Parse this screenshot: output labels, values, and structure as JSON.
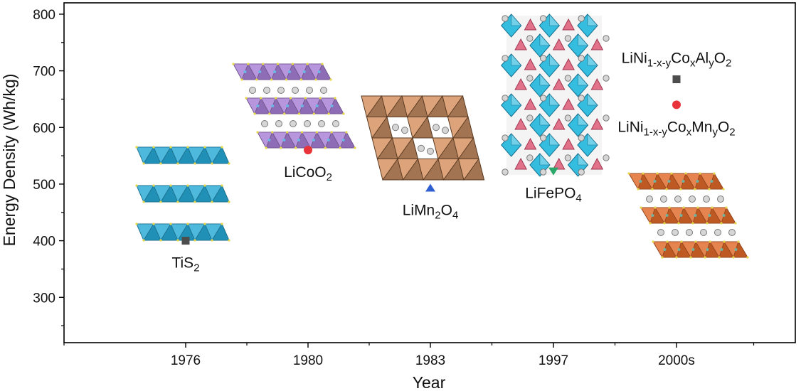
{
  "chart_data": {
    "type": "scatter",
    "title": "",
    "xlabel": "Year",
    "ylabel": "Energy Density (Wh/kg)",
    "categories": [
      "1976",
      "1980",
      "1983",
      "1997",
      "2000s"
    ],
    "ylim": [
      220,
      820
    ],
    "yticks": [
      300,
      400,
      500,
      600,
      700,
      800
    ],
    "grid": false,
    "points": [
      {
        "category": "1976",
        "value": 400,
        "label": "TiS2",
        "label_parts": [
          [
            "TiS",
            ""
          ],
          [
            "2",
            "sub"
          ]
        ],
        "marker": "square",
        "color": "#4d4d4d",
        "label_pos": "below"
      },
      {
        "category": "1980",
        "value": 560,
        "label": "LiCoO2",
        "label_parts": [
          [
            "LiCoO",
            ""
          ],
          [
            "2",
            "sub"
          ]
        ],
        "marker": "circle",
        "color": "#e8333a",
        "label_pos": "below"
      },
      {
        "category": "1983",
        "value": 493,
        "label": "LiMn2O4",
        "label_parts": [
          [
            "LiMn",
            ""
          ],
          [
            "2",
            "sub"
          ],
          [
            "O",
            ""
          ],
          [
            "4",
            "sub"
          ]
        ],
        "marker": "triangle-up",
        "color": "#2f5fd0",
        "label_pos": "below"
      },
      {
        "category": "1997",
        "value": 523,
        "label": "LiFePO4",
        "label_parts": [
          [
            "LiFePO",
            ""
          ],
          [
            "4",
            "sub"
          ]
        ],
        "marker": "triangle-down",
        "color": "#2aa86a",
        "label_pos": "below"
      },
      {
        "category": "2000s",
        "value": 685,
        "label": "LiNi1-x-yCoxAlyO2",
        "label_parts": [
          [
            "LiNi",
            ""
          ],
          [
            "1-x-y",
            "sub"
          ],
          [
            "Co",
            ""
          ],
          [
            "x",
            "sub"
          ],
          [
            "Al",
            ""
          ],
          [
            "y",
            "sub"
          ],
          [
            "O",
            ""
          ],
          [
            "2",
            "sub"
          ]
        ],
        "marker": "square",
        "color": "#4d4d4d",
        "label_pos": "above"
      },
      {
        "category": "2000s",
        "value": 640,
        "label": "LiNi1-x-yCoxMnyO2",
        "label_parts": [
          [
            "LiNi",
            ""
          ],
          [
            "1-x-y",
            "sub"
          ],
          [
            "Co",
            ""
          ],
          [
            "x",
            "sub"
          ],
          [
            "Mn",
            ""
          ],
          [
            "y",
            "sub"
          ],
          [
            "O",
            ""
          ],
          [
            "2",
            "sub"
          ]
        ],
        "marker": "circle",
        "color": "#e8333a",
        "label_pos": "below"
      }
    ],
    "illustrations": [
      {
        "name": "tis2-layered-structure",
        "category": "1976",
        "style": "layered",
        "color": "#27a9d6"
      },
      {
        "name": "licoo2-layered-structure",
        "category": "1980",
        "style": "layered-with-li",
        "color": "#a77fd6"
      },
      {
        "name": "limn2o4-spinel-structure",
        "category": "1983",
        "style": "spinel",
        "color": "#d99a6c"
      },
      {
        "name": "lifepo4-olivine-structure",
        "category": "1997",
        "style": "olivine",
        "color": "#35bde0"
      },
      {
        "name": "nca-nmc-layered-structure",
        "category": "2000s",
        "style": "layered-with-li",
        "color": "#e0692a"
      }
    ]
  }
}
